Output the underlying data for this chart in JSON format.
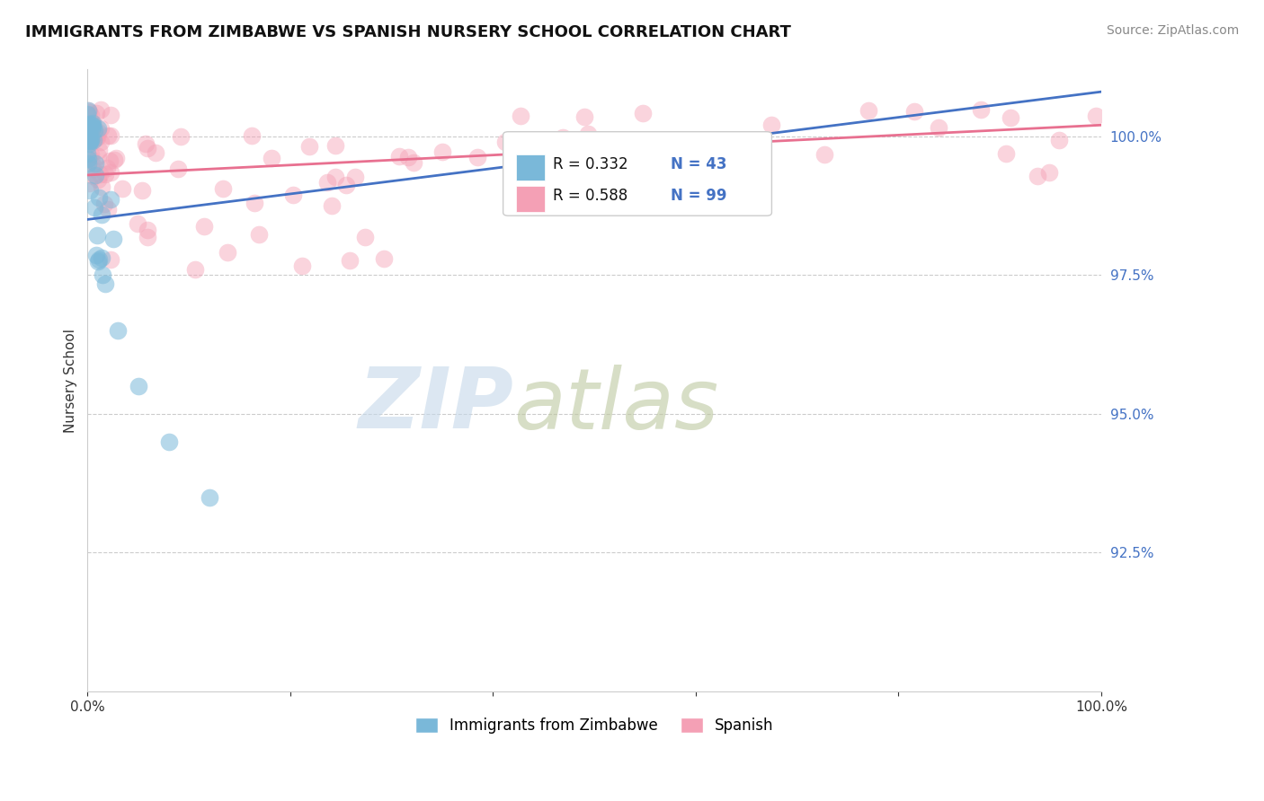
{
  "title": "IMMIGRANTS FROM ZIMBABWE VS SPANISH NURSERY SCHOOL CORRELATION CHART",
  "source": "Source: ZipAtlas.com",
  "ylabel": "Nursery School",
  "xlim": [
    0,
    100
  ],
  "ylim": [
    90.0,
    101.2
  ],
  "yticks": [
    92.5,
    95.0,
    97.5,
    100.0
  ],
  "ytick_labels": [
    "92.5%",
    "95.0%",
    "97.5%",
    "100.0%"
  ],
  "legend_blue_label": "Immigrants from Zimbabwe",
  "legend_pink_label": "Spanish",
  "R_blue": 0.332,
  "N_blue": 43,
  "R_pink": 0.588,
  "N_pink": 99,
  "blue_color": "#7ab8d9",
  "pink_color": "#f4a0b5",
  "blue_line_color": "#4472c4",
  "pink_line_color": "#e87090",
  "background_color": "#ffffff",
  "blue_line_x": [
    0,
    100
  ],
  "blue_line_y": [
    98.5,
    100.8
  ],
  "pink_line_x": [
    0,
    100
  ],
  "pink_line_y": [
    99.3,
    100.2
  ]
}
